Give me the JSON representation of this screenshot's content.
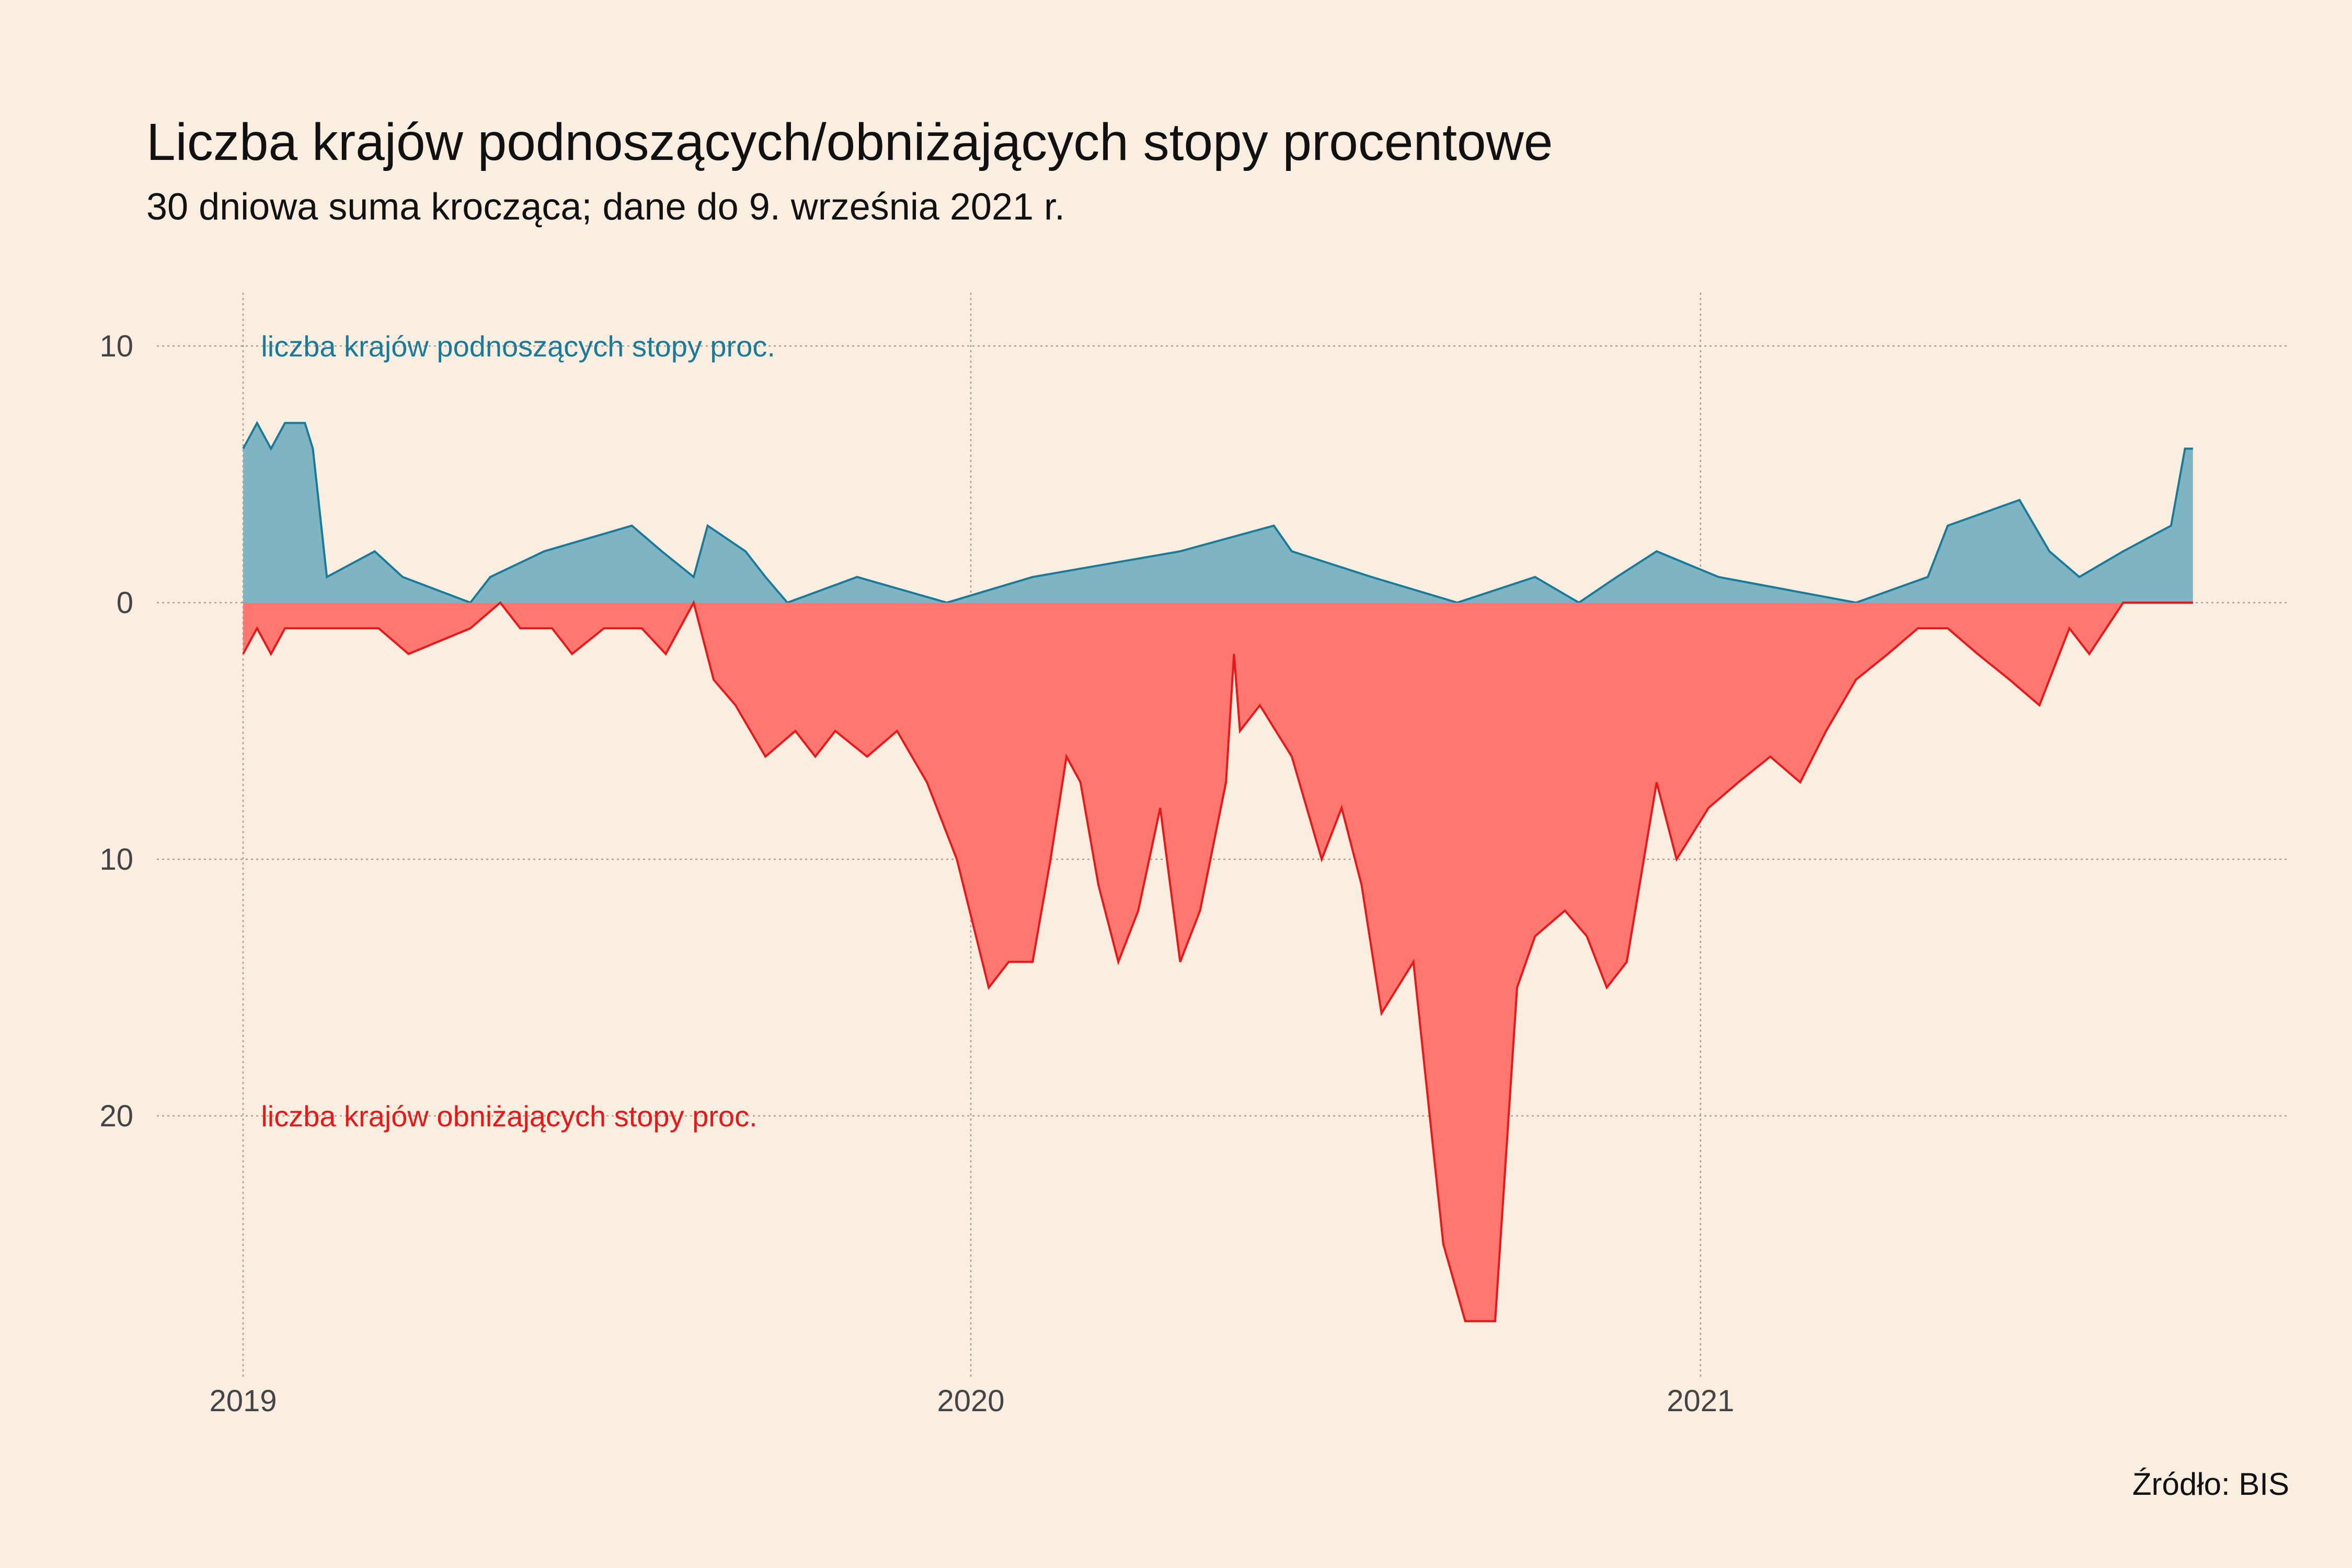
{
  "title": "Liczba krajów podnoszących/obniżających stopy procentowe",
  "subtitle": "30 dniowa suma krocząca; dane do 9. września 2021 r.",
  "source": "Źródło:  BIS",
  "colors": {
    "background": "#FAEEE1",
    "raise_line": "#1A7A99",
    "raise_fill": "#7FB5C2",
    "cut_line": "#E81818",
    "cut_fill": "#FF7771",
    "grid": "#A89F95"
  },
  "chart_data": {
    "type": "area",
    "xlim": [
      "2019-01-01",
      "2021-10-20"
    ],
    "ylim": [
      -28,
      10
    ],
    "y_axis_shows_absolute_values": true,
    "grid": "dotted",
    "x_ticks": [
      {
        "label": "2019",
        "date": "2019-01-01"
      },
      {
        "label": "2020",
        "date": "2020-01-01"
      },
      {
        "label": "2021",
        "date": "2021-01-01"
      }
    ],
    "y_ticks": [
      {
        "label": "10",
        "value": 10
      },
      {
        "label": "0",
        "value": 0
      },
      {
        "label": "10",
        "value": -10
      },
      {
        "label": "20",
        "value": -20
      }
    ],
    "annotations": [
      {
        "text": "liczba krajów podnoszących stopy proc.",
        "series": "raise",
        "date": "2019-01-10",
        "y": 10
      },
      {
        "text": "liczba krajów obniżających stopy proc.",
        "series": "cut",
        "date": "2019-01-10",
        "y": -20
      }
    ],
    "series": [
      {
        "key": "raise",
        "points": [
          [
            "2019-01-01",
            6
          ],
          [
            "2019-01-08",
            7
          ],
          [
            "2019-01-15",
            6
          ],
          [
            "2019-01-22",
            7
          ],
          [
            "2019-02-01",
            7
          ],
          [
            "2019-02-05",
            6
          ],
          [
            "2019-02-12",
            1
          ],
          [
            "2019-03-08",
            2
          ],
          [
            "2019-03-22",
            1
          ],
          [
            "2019-04-25",
            0
          ],
          [
            "2019-05-05",
            1
          ],
          [
            "2019-06-01",
            2
          ],
          [
            "2019-07-15",
            3
          ],
          [
            "2019-07-30",
            2
          ],
          [
            "2019-08-15",
            1
          ],
          [
            "2019-08-22",
            3
          ],
          [
            "2019-09-10",
            2
          ],
          [
            "2019-09-20",
            1
          ],
          [
            "2019-10-01",
            0
          ],
          [
            "2019-11-05",
            1
          ],
          [
            "2019-12-20",
            0
          ],
          [
            "2020-02-01",
            1
          ],
          [
            "2020-04-15",
            2
          ],
          [
            "2020-06-01",
            3
          ],
          [
            "2020-06-10",
            2
          ],
          [
            "2020-07-20",
            1
          ],
          [
            "2020-09-01",
            0
          ],
          [
            "2020-10-10",
            1
          ],
          [
            "2020-11-01",
            0
          ],
          [
            "2020-11-20",
            1
          ],
          [
            "2020-12-10",
            2
          ],
          [
            "2021-01-10",
            1
          ],
          [
            "2021-03-20",
            0
          ],
          [
            "2021-04-25",
            1
          ],
          [
            "2021-05-05",
            3
          ],
          [
            "2021-06-10",
            4
          ],
          [
            "2021-06-25",
            2
          ],
          [
            "2021-07-10",
            1
          ],
          [
            "2021-08-01",
            2
          ],
          [
            "2021-08-25",
            3
          ],
          [
            "2021-09-01",
            6
          ],
          [
            "2021-09-05",
            6
          ]
        ]
      },
      {
        "key": "cut",
        "points": [
          [
            "2019-01-01",
            -2
          ],
          [
            "2019-01-08",
            -1
          ],
          [
            "2019-01-15",
            -2
          ],
          [
            "2019-01-22",
            -1
          ],
          [
            "2019-02-01",
            -1
          ],
          [
            "2019-02-15",
            -1
          ],
          [
            "2019-03-10",
            -1
          ],
          [
            "2019-03-25",
            -2
          ],
          [
            "2019-04-25",
            -1
          ],
          [
            "2019-05-10",
            0
          ],
          [
            "2019-05-20",
            -1
          ],
          [
            "2019-06-05",
            -1
          ],
          [
            "2019-06-15",
            -2
          ],
          [
            "2019-07-01",
            -1
          ],
          [
            "2019-07-20",
            -1
          ],
          [
            "2019-08-01",
            -2
          ],
          [
            "2019-08-15",
            0
          ],
          [
            "2019-08-25",
            -3
          ],
          [
            "2019-09-05",
            -4
          ],
          [
            "2019-09-20",
            -6
          ],
          [
            "2019-10-05",
            -5
          ],
          [
            "2019-10-15",
            -6
          ],
          [
            "2019-10-25",
            -5
          ],
          [
            "2019-11-10",
            -6
          ],
          [
            "2019-11-25",
            -5
          ],
          [
            "2019-12-10",
            -7
          ],
          [
            "2019-12-25",
            -10
          ],
          [
            "2020-01-10",
            -15
          ],
          [
            "2020-01-20",
            -14
          ],
          [
            "2020-02-01",
            -14
          ],
          [
            "2020-02-10",
            -10
          ],
          [
            "2020-02-18",
            -6
          ],
          [
            "2020-02-25",
            -7
          ],
          [
            "2020-03-05",
            -11
          ],
          [
            "2020-03-15",
            -14
          ],
          [
            "2020-03-25",
            -12
          ],
          [
            "2020-04-05",
            -8
          ],
          [
            "2020-04-15",
            -14
          ],
          [
            "2020-04-25",
            -12
          ],
          [
            "2020-05-08",
            -7
          ],
          [
            "2020-05-12",
            -2
          ],
          [
            "2020-05-15",
            -5
          ],
          [
            "2020-05-25",
            -4
          ],
          [
            "2020-06-10",
            -6
          ],
          [
            "2020-06-25",
            -10
          ],
          [
            "2020-07-05",
            -8
          ],
          [
            "2020-07-15",
            -11
          ],
          [
            "2020-07-25",
            -16
          ],
          [
            "2020-08-10",
            -14
          ],
          [
            "2020-08-25",
            -25
          ],
          [
            "2020-09-05",
            -28
          ],
          [
            "2020-09-20",
            -28
          ],
          [
            "2020-10-01",
            -15
          ],
          [
            "2020-10-10",
            -13
          ],
          [
            "2020-10-25",
            -12
          ],
          [
            "2020-11-05",
            -13
          ],
          [
            "2020-11-15",
            -15
          ],
          [
            "2020-11-25",
            -14
          ],
          [
            "2020-12-10",
            -7
          ],
          [
            "2020-12-20",
            -10
          ],
          [
            "2021-01-05",
            -8
          ],
          [
            "2021-01-20",
            -7
          ],
          [
            "2021-02-05",
            -6
          ],
          [
            "2021-02-20",
            -7
          ],
          [
            "2021-03-05",
            -5
          ],
          [
            "2021-03-20",
            -3
          ],
          [
            "2021-04-05",
            -2
          ],
          [
            "2021-04-20",
            -1
          ],
          [
            "2021-05-05",
            -1
          ],
          [
            "2021-05-20",
            -2
          ],
          [
            "2021-06-05",
            -3
          ],
          [
            "2021-06-20",
            -4
          ],
          [
            "2021-07-05",
            -1
          ],
          [
            "2021-07-15",
            -2
          ],
          [
            "2021-08-01",
            0
          ],
          [
            "2021-09-05",
            0
          ]
        ]
      }
    ]
  }
}
